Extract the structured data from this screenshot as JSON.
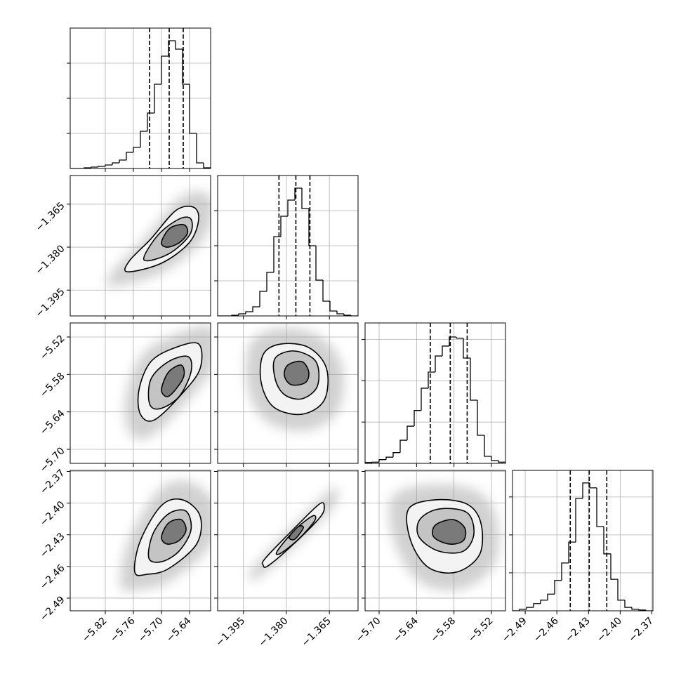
{
  "chart_data": {
    "type": "corner",
    "grid": true,
    "color": "#000000",
    "parameters": [
      {
        "xlim": [
          -5.895,
          -5.595
        ],
        "xticks": [
          {
            "value": -5.82,
            "label": "−5.82"
          },
          {
            "value": -5.76,
            "label": "−5.76"
          },
          {
            "value": -5.7,
            "label": "−5.70"
          },
          {
            "value": -5.64,
            "label": "−5.64"
          }
        ],
        "bins": [
          -5.895,
          -5.88,
          -5.865,
          -5.85,
          -5.835,
          -5.82,
          -5.805,
          -5.79,
          -5.775,
          -5.76,
          -5.745,
          -5.73,
          -5.715,
          -5.7,
          -5.685,
          -5.67,
          -5.655,
          -5.64,
          -5.625,
          -5.61,
          -5.595
        ],
        "counts": [
          0,
          0,
          0.02,
          0.04,
          0.06,
          0.1,
          0.16,
          0.24,
          0.46,
          0.6,
          1.06,
          1.58,
          2.4,
          3.2,
          3.64,
          3.4,
          2.4,
          1.0,
          0.16,
          0.02
        ],
        "ylim": [
          0,
          4
        ],
        "yticks": [
          1,
          2,
          3
        ],
        "quantiles": [
          -5.7255,
          -5.6835,
          -5.6535
        ]
      },
      {
        "xlim": [
          -1.404,
          -1.355
        ],
        "xticks": [
          {
            "value": -1.395,
            "label": "−1.395"
          },
          {
            "value": -1.38,
            "label": "−1.380"
          },
          {
            "value": -1.365,
            "label": "−1.365"
          }
        ],
        "bins": [
          -1.404,
          -1.40155,
          -1.3991,
          -1.39665,
          -1.3942,
          -1.39175,
          -1.3893,
          -1.38685,
          -1.3844,
          -1.38195,
          -1.3795,
          -1.37705,
          -1.3746,
          -1.37215,
          -1.3697,
          -1.36725,
          -1.3648,
          -1.36235,
          -1.3599,
          -1.35745,
          -1.355
        ],
        "counts": [
          0,
          0,
          0.02,
          0.06,
          0.12,
          0.26,
          0.7,
          1.24,
          2.26,
          2.84,
          3.3,
          3.64,
          3.06,
          2.0,
          1.02,
          0.42,
          0.14,
          0.06,
          0.02,
          0
        ],
        "ylim": [
          0,
          4
        ],
        "yticks": [
          1,
          2,
          3
        ],
        "quantiles": [
          -1.3826,
          -1.3767,
          -1.3718
        ]
      },
      {
        "xlim": [
          -5.7225,
          -5.4975
        ],
        "xticks": [
          {
            "value": -5.7,
            "label": "−5.70"
          },
          {
            "value": -5.64,
            "label": "−5.64"
          },
          {
            "value": -5.58,
            "label": "−5.58"
          },
          {
            "value": -5.52,
            "label": "−5.52"
          }
        ],
        "bins": [
          -5.7225,
          -5.71125,
          -5.7,
          -5.68875,
          -5.6775,
          -5.66625,
          -5.655,
          -5.64375,
          -5.6325,
          -5.62125,
          -5.61,
          -5.59875,
          -5.5875,
          -5.57625,
          -5.565,
          -5.55375,
          -5.5425,
          -5.53125,
          -5.52,
          -5.50875,
          -5.4975
        ],
        "counts": [
          0.02,
          0.03,
          0.09,
          0.15,
          0.26,
          0.56,
          0.9,
          1.28,
          1.82,
          2.21,
          2.6,
          2.84,
          3.06,
          3.03,
          2.55,
          1.53,
          0.68,
          0.17,
          0.07,
          0.03
        ],
        "ylim": [
          0,
          3.4
        ],
        "yticks": [
          1,
          2,
          3
        ],
        "quantiles": [
          -5.618,
          -5.586,
          -5.5589
        ]
      },
      {
        "xlim": [
          -2.502,
          -2.369
        ],
        "xticks": [
          {
            "value": -2.49,
            "label": "−2.49"
          },
          {
            "value": -2.46,
            "label": "−2.46"
          },
          {
            "value": -2.43,
            "label": "−2.43"
          },
          {
            "value": -2.4,
            "label": "−2.40"
          },
          {
            "value": -2.37,
            "label": "−2.37"
          }
        ],
        "bins": [
          -2.502,
          -2.49535,
          -2.4887,
          -2.48205,
          -2.4754,
          -2.46875,
          -2.4621,
          -2.45545,
          -2.4488,
          -2.44215,
          -2.4355,
          -2.42885,
          -2.4222,
          -2.41555,
          -2.4089,
          -2.40225,
          -2.3956,
          -2.38895,
          -2.3823,
          -2.37565,
          -2.369
        ],
        "counts": [
          0,
          0.04,
          0.09,
          0.19,
          0.28,
          0.44,
          0.8,
          1.26,
          1.81,
          2.96,
          3.37,
          3.24,
          2.22,
          1.5,
          0.83,
          0.28,
          0.09,
          0.04,
          0.02,
          0
        ],
        "ylim": [
          0,
          3.7
        ],
        "yticks": [
          1,
          2,
          3
        ],
        "quantiles": [
          -2.4473,
          -2.4293,
          -2.4127
        ]
      }
    ],
    "pairs": [
      {
        "contours": [
          {
            "x": [
              -5.772,
              -5.769,
              -5.7225,
              -5.67,
              -5.6325,
              -5.6205,
              -5.64,
              -5.7
            ],
            "y": [
              -1.3886,
              -1.3849,
              -1.3771,
              -1.3673,
              -1.366,
              -1.3702,
              -1.3783,
              -1.3856
            ]
          },
          {
            "x": [
              -5.7375,
              -5.7075,
              -5.6625,
              -5.637,
              -5.64,
              -5.685
            ],
            "y": [
              -1.3844,
              -1.3758,
              -1.3702,
              -1.3702,
              -1.3758,
              -1.3824
            ]
          },
          {
            "x": [
              -5.7,
              -5.682,
              -5.652,
              -5.6445,
              -5.6625,
              -5.688
            ],
            "y": [
              -1.3783,
              -1.3734,
              -1.3722,
              -1.3751,
              -1.3785,
              -1.38
            ]
          }
        ]
      },
      {
        "contours": [
          {
            "x": [
              -5.745,
              -5.748,
              -5.7225,
              -5.67,
              -5.6205,
              -5.6175,
              -5.655,
              -5.715
            ],
            "y": [
              -5.6438,
              -5.6044,
              -5.5594,
              -5.5369,
              -5.5313,
              -5.5706,
              -5.61,
              -5.6528
            ]
          },
          {
            "x": [
              -5.7255,
              -5.7225,
              -5.685,
              -5.643,
              -5.637,
              -5.6625,
              -5.703
            ],
            "y": [
              -5.6269,
              -5.5875,
              -5.5594,
              -5.5515,
              -5.5763,
              -5.6156,
              -5.6348
            ]
          },
          {
            "x": [
              -5.7,
              -5.685,
              -5.658,
              -5.652,
              -5.67,
              -5.688
            ],
            "y": [
              -5.6044,
              -5.5763,
              -5.565,
              -5.5819,
              -5.6044,
              -5.6156
            ]
          }
        ]
      },
      {
        "contours": [
          {
            "x": [
              -1.3881,
              -1.382,
              -1.3722,
              -1.366,
              -1.3668,
              -1.3746,
              -1.3844,
              -1.3888
            ],
            "y": [
              -5.5481,
              -5.5313,
              -5.5369,
              -5.5706,
              -5.6213,
              -5.6438,
              -5.6325,
              -5.5931
            ]
          },
          {
            "x": [
              -1.3839,
              -1.3771,
              -1.3697,
              -1.3692,
              -1.3746,
              -1.3807,
              -1.3839
            ],
            "y": [
              -5.5538,
              -5.5425,
              -5.5594,
              -5.5988,
              -5.619,
              -5.6123,
              -5.5875
            ]
          },
          {
            "x": [
              -1.3795,
              -1.3746,
              -1.3722,
              -1.3734,
              -1.3783,
              -1.3807
            ],
            "y": [
              -5.565,
              -5.5594,
              -5.5763,
              -5.5931,
              -5.5965,
              -5.5819
            ]
          }
        ]
      },
      {
        "contours": [
          {
            "x": [
              -5.757,
              -5.745,
              -5.7,
              -5.655,
              -5.6175,
              -5.625,
              -5.685,
              -5.73
            ],
            "y": [
              -2.4654,
              -2.4355,
              -2.4023,
              -2.3969,
              -2.4122,
              -2.4388,
              -2.4621,
              -2.4674
            ]
          },
          {
            "x": [
              -5.727,
              -5.718,
              -5.685,
              -5.6475,
              -5.637,
              -5.6625,
              -5.7
            ],
            "y": [
              -2.4521,
              -2.4289,
              -2.4102,
              -2.4076,
              -2.4255,
              -2.4455,
              -2.4555
            ]
          },
          {
            "x": [
              -5.7,
              -5.685,
              -5.658,
              -5.6475,
              -5.6625,
              -5.688
            ],
            "y": [
              -2.4322,
              -2.4189,
              -2.4156,
              -2.4255,
              -2.4355,
              -2.4388
            ]
          }
        ]
      },
      {
        "contours": [
          {
            "x": [
              -1.3881,
              -1.3873,
              -1.3771,
              -1.3685,
              -1.3668,
              -1.3685,
              -1.3783,
              -1.3864
            ],
            "y": [
              -2.4588,
              -2.4521,
              -2.4235,
              -2.4009,
              -2.4036,
              -2.4142,
              -2.4408,
              -2.4594
            ]
          },
          {
            "x": [
              -1.3832,
              -1.3771,
              -1.3709,
              -1.3702,
              -1.3758,
              -1.382
            ],
            "y": [
              -2.4455,
              -2.4255,
              -2.4122,
              -2.4169,
              -2.4342,
              -2.4475
            ]
          },
          {
            "x": [
              -1.379,
              -1.3758,
              -1.3741,
              -1.3771
            ],
            "y": [
              -2.4322,
              -2.4222,
              -2.4235,
              -2.4342
            ]
          }
        ]
      },
      {
        "contours": [
          {
            "x": [
              -5.6528,
              -5.61,
              -5.5594,
              -5.5369,
              -5.5391,
              -5.5763,
              -5.6213,
              -5.6494
            ],
            "y": [
              -2.4056,
              -2.3969,
              -2.4009,
              -2.4189,
              -2.4488,
              -2.4654,
              -2.4608,
              -2.4355
            ]
          },
          {
            "x": [
              -5.6348,
              -5.6044,
              -5.5594,
              -5.5481,
              -5.565,
              -5.6044,
              -5.6359
            ],
            "y": [
              -2.4156,
              -2.4056,
              -2.4089,
              -2.4289,
              -2.4455,
              -2.4455,
              -2.4322
            ]
          },
          {
            "x": [
              -5.61,
              -5.5819,
              -5.5628,
              -5.565,
              -5.5875,
              -5.6123
            ],
            "y": [
              -2.4209,
              -2.4156,
              -2.4235,
              -2.4355,
              -2.4388,
              -2.4322
            ]
          }
        ]
      }
    ]
  }
}
